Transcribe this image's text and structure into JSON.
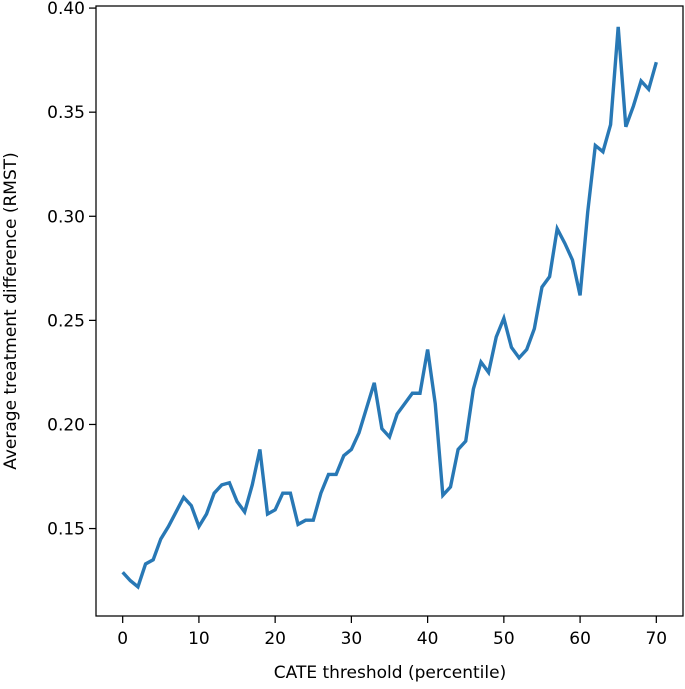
{
  "chart_data": {
    "type": "line",
    "title": "",
    "xlabel": "CATE threshold (percentile)",
    "ylabel": "Average treatment difference (RMST)",
    "xlim": [
      -3.5,
      73.5
    ],
    "ylim": [
      0.108,
      0.401
    ],
    "x_ticks": [
      0,
      10,
      20,
      30,
      40,
      50,
      60,
      70
    ],
    "x_tick_labels": [
      "0",
      "10",
      "20",
      "30",
      "40",
      "50",
      "60",
      "70"
    ],
    "y_ticks": [
      0.15,
      0.2,
      0.25,
      0.3,
      0.35,
      0.4
    ],
    "y_tick_labels": [
      "0.15",
      "0.20",
      "0.25",
      "0.30",
      "0.35",
      "0.40"
    ],
    "grid": false,
    "legend": "none",
    "series": [
      {
        "color": "#2878b5",
        "x": [
          0,
          1,
          2,
          3,
          4,
          5,
          6,
          7,
          8,
          9,
          10,
          11,
          12,
          13,
          14,
          15,
          16,
          17,
          18,
          19,
          20,
          21,
          22,
          23,
          24,
          25,
          26,
          27,
          28,
          29,
          30,
          31,
          32,
          33,
          34,
          35,
          36,
          37,
          38,
          39,
          40,
          41,
          42,
          43,
          44,
          45,
          46,
          47,
          48,
          49,
          50,
          51,
          52,
          53,
          54,
          55,
          56,
          57,
          58,
          59,
          60,
          61,
          62,
          63,
          64,
          65,
          66,
          67,
          68,
          69,
          70
        ],
        "values": [
          0.129,
          0.125,
          0.122,
          0.133,
          0.135,
          0.145,
          0.151,
          0.158,
          0.165,
          0.161,
          0.151,
          0.157,
          0.167,
          0.171,
          0.172,
          0.163,
          0.158,
          0.171,
          0.188,
          0.157,
          0.159,
          0.167,
          0.167,
          0.152,
          0.154,
          0.154,
          0.167,
          0.176,
          0.176,
          0.185,
          0.188,
          0.196,
          0.208,
          0.22,
          0.198,
          0.194,
          0.205,
          0.21,
          0.215,
          0.215,
          0.236,
          0.21,
          0.166,
          0.17,
          0.188,
          0.192,
          0.217,
          0.23,
          0.225,
          0.242,
          0.251,
          0.237,
          0.232,
          0.236,
          0.246,
          0.266,
          0.271,
          0.294,
          0.287,
          0.279,
          0.262,
          0.302,
          0.334,
          0.331,
          0.344,
          0.391,
          0.343,
          0.353,
          0.365,
          0.361,
          0.374
        ]
      }
    ]
  }
}
